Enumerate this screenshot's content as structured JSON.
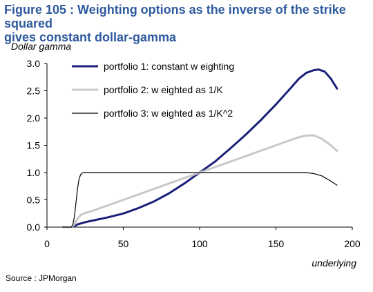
{
  "figure": {
    "title_line1": "Figure 105 : Weighting options as the inverse of the strike squared",
    "title_line2": "gives constant dollar-gamma",
    "source": "Source : JPMorgan"
  },
  "chart_data": {
    "type": "line",
    "ylabel": "Dollar gamma",
    "xlabel": "underlying",
    "xlim": [
      0,
      200
    ],
    "ylim": [
      0,
      3.0
    ],
    "x_ticks": [
      "0",
      "50",
      "100",
      "150",
      "200"
    ],
    "y_ticks": [
      "0.0",
      "0.5",
      "1.0",
      "1.5",
      "2.0",
      "2.5",
      "3.0"
    ],
    "grid": false,
    "legend_position": "top-left",
    "series": [
      {
        "name": "portfolio 1:  constant w eighting",
        "color": "#1a1f7a",
        "x": [
          10,
          16,
          18,
          20,
          25,
          30,
          40,
          50,
          60,
          70,
          80,
          90,
          100,
          110,
          120,
          130,
          140,
          150,
          160,
          165,
          170,
          175,
          178,
          182,
          186,
          190
        ],
        "y": [
          0,
          0,
          0.02,
          0.05,
          0.09,
          0.12,
          0.18,
          0.25,
          0.35,
          0.47,
          0.62,
          0.8,
          1.0,
          1.2,
          1.44,
          1.69,
          1.96,
          2.25,
          2.56,
          2.72,
          2.83,
          2.88,
          2.89,
          2.85,
          2.72,
          2.54
        ]
      },
      {
        "name": "portfolio 2:  w eighted as  1/K",
        "color": "#c8c8c8",
        "x": [
          10,
          16,
          18,
          20,
          22,
          25,
          30,
          40,
          50,
          60,
          70,
          80,
          90,
          100,
          110,
          120,
          130,
          140,
          150,
          160,
          165,
          170,
          175,
          180,
          185,
          190
        ],
        "y": [
          0,
          0,
          0.05,
          0.15,
          0.22,
          0.26,
          0.3,
          0.4,
          0.5,
          0.6,
          0.7,
          0.8,
          0.9,
          1.0,
          1.1,
          1.2,
          1.3,
          1.4,
          1.5,
          1.6,
          1.65,
          1.68,
          1.68,
          1.62,
          1.52,
          1.4
        ]
      },
      {
        "name": "portfolio 3:  w eighted as  1/K^2",
        "color": "#000000",
        "x": [
          10,
          16,
          17,
          18,
          19,
          20,
          21,
          22,
          23,
          24,
          25,
          30,
          50,
          100,
          150,
          170,
          175,
          180,
          185,
          190
        ],
        "y": [
          0,
          0,
          0.05,
          0.2,
          0.45,
          0.7,
          0.88,
          0.96,
          0.99,
          1.0,
          1.0,
          1.0,
          1.0,
          1.0,
          1.0,
          1.0,
          0.98,
          0.94,
          0.86,
          0.77
        ]
      }
    ]
  }
}
